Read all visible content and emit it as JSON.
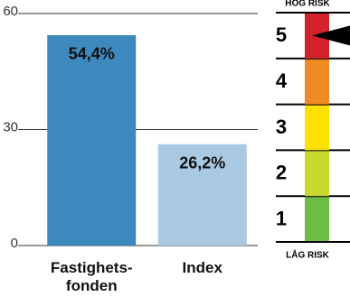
{
  "chart_data": [
    {
      "type": "bar",
      "categories": [
        "Fastighets-\nfonden",
        "Index"
      ],
      "values": [
        54.4,
        26.2
      ],
      "value_labels": [
        "54,4%",
        "26,2%"
      ],
      "colors": [
        "#3d88bc",
        "#a9c9e2"
      ],
      "ylim": [
        0,
        60
      ],
      "yticks": [
        0,
        30,
        60
      ],
      "grid": true
    },
    {
      "type": "risk_scale",
      "top_label": "HÖG RISK",
      "bottom_label": "LÅG RISK",
      "levels": [
        1,
        2,
        3,
        4,
        5
      ],
      "colors": [
        "#6cbd45",
        "#c8d92d",
        "#fde100",
        "#f08a25",
        "#d2232a"
      ],
      "selected": 5
    }
  ]
}
